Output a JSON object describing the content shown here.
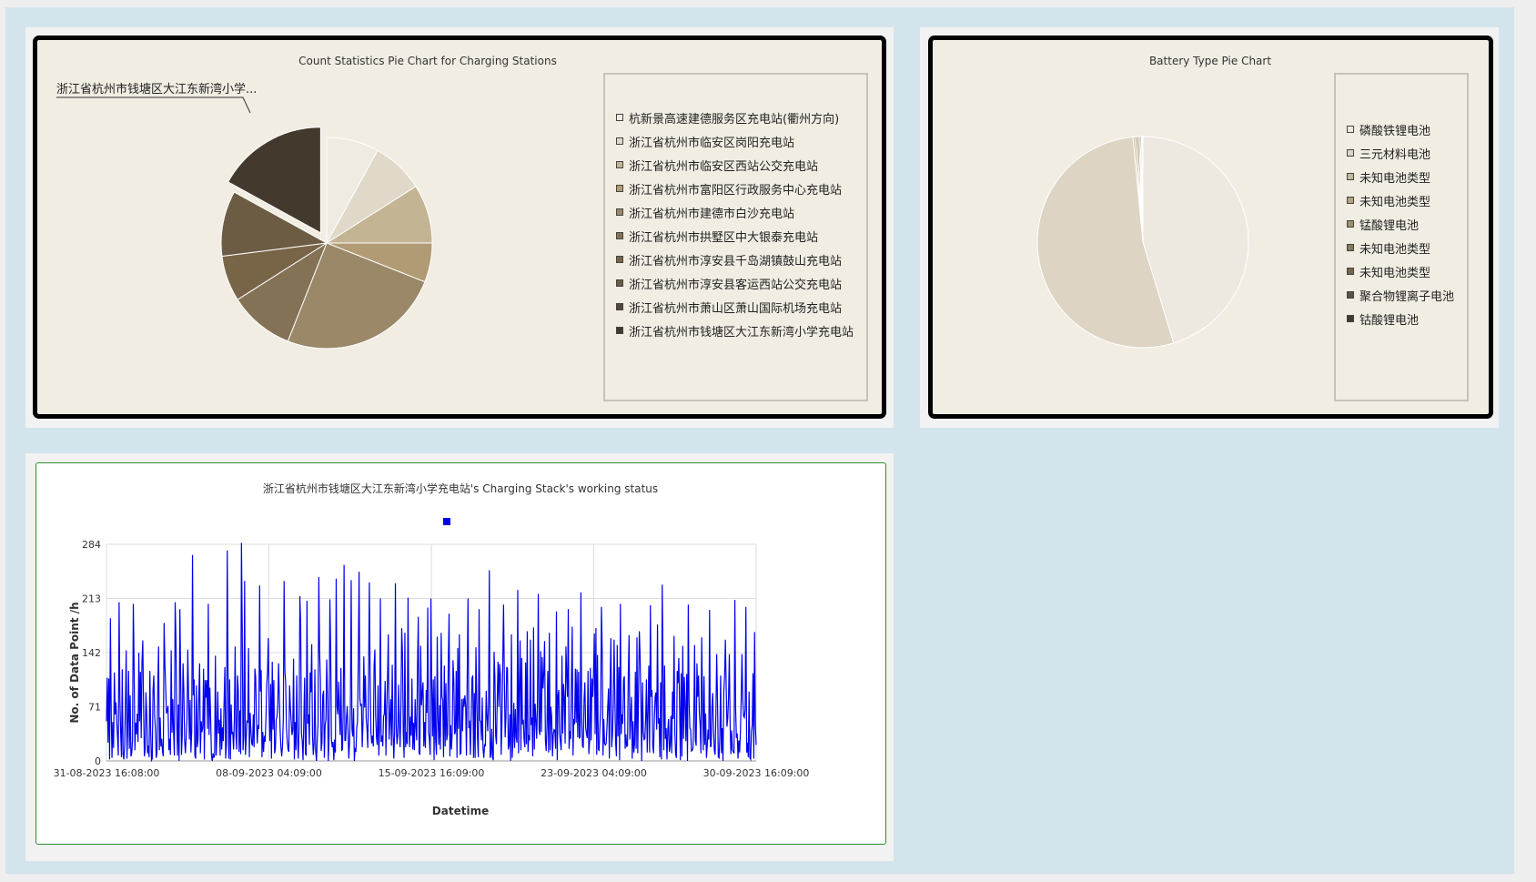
{
  "station_pie": {
    "chart_data": {
      "type": "pie",
      "title": "Count Statistics Pie Chart for Charging Stations",
      "legend_position": "right",
      "exploded_label": "浙江省杭州市钱塘区大江东新湾小学...",
      "slices": [
        {
          "label": "杭新景高速建德服务区充电站(衢州方向)",
          "value": 8,
          "color": "#efeae2"
        },
        {
          "label": "浙江省杭州市临安区岗阳充电站",
          "value": 8,
          "color": "#e0d8c8"
        },
        {
          "label": "浙江省杭州市临安区西站公交充电站",
          "value": 9,
          "color": "#c3b494"
        },
        {
          "label": "浙江省杭州市富阳区行政服务中心充电站",
          "value": 6,
          "color": "#b09b74"
        },
        {
          "label": "浙江省杭州市建德市白沙充电站",
          "value": 25,
          "color": "#9a8868"
        },
        {
          "label": "浙江省杭州市拱墅区中大银泰充电站",
          "value": 10,
          "color": "#847257"
        },
        {
          "label": "浙江省杭州市淳安县千岛湖镇鼓山充电站",
          "value": 7,
          "color": "#786548"
        },
        {
          "label": "浙江省杭州市淳安县客运西站公交充电站",
          "value": 10,
          "color": "#6c5c44"
        },
        {
          "label": "浙江省杭州市萧山区萧山国际机场充电站",
          "value": 0,
          "color": "#54483a"
        },
        {
          "label": "浙江省杭州市钱塘区大江东新湾小学充电站",
          "value": 17,
          "color": "#433a2d"
        }
      ]
    }
  },
  "battery_pie": {
    "chart_data": {
      "type": "pie",
      "title": "Battery Type Pie Chart",
      "legend_position": "right",
      "slices": [
        {
          "label": "磷酸铁锂电池",
          "value": 45.3,
          "color": "#ede8e0"
        },
        {
          "label": "三元材料电池",
          "value": 53.2,
          "color": "#ddd4c3"
        },
        {
          "label": "未知电池类型",
          "value": 0.3,
          "color": "#c6b89a"
        },
        {
          "label": "未知电池类型",
          "value": 0.3,
          "color": "#b6a27c"
        },
        {
          "label": "锰酸锂电池",
          "value": 0.3,
          "color": "#a08e6c"
        },
        {
          "label": "未知电池类型",
          "value": 0.2,
          "color": "#8a785a"
        },
        {
          "label": "未知电池类型",
          "value": 0.2,
          "color": "#786548"
        },
        {
          "label": "聚合物锂离子电池",
          "value": 0.1,
          "color": "#5e5040"
        },
        {
          "label": "钴酸锂电池",
          "value": 0.1,
          "color": "#433a2d"
        }
      ]
    }
  },
  "status_line": {
    "chart_data": {
      "type": "line",
      "title": "浙江省杭州市钱塘区大江东新湾小学充电站's Charging Stack's working status",
      "xlabel": "Datetime",
      "ylabel": "No. of Data Point /h",
      "x_ticks": [
        "31-08-2023 16:08:00",
        "08-09-2023 04:09:00",
        "15-09-2023 16:09:00",
        "23-09-2023 04:09:00",
        "30-09-2023 16:09:00"
      ],
      "y_ticks": [
        0,
        71,
        142,
        213,
        284
      ],
      "ylim": [
        0,
        284
      ],
      "grid": true,
      "legend_position": "top",
      "series": [
        {
          "color": "#0000ee",
          "x_start": "31-08-2023 16:08:00",
          "x_end": "30-09-2023 16:09:00",
          "step": "1h",
          "values": [
            52,
            109,
            24,
            108,
            2,
            187,
            64,
            4,
            51,
            17,
            116,
            61,
            77,
            52,
            32,
            7,
            208,
            81,
            37,
            5,
            120,
            9,
            2,
            19,
            75,
            145,
            3,
            44,
            118,
            16,
            86,
            6,
            10,
            27,
            206,
            128,
            14,
            50,
            35,
            62,
            25,
            142,
            52,
            117,
            30,
            131,
            158,
            71,
            6,
            15,
            90,
            60,
            10,
            20,
            5,
            118,
            39,
            1,
            3,
            94,
            112,
            60,
            41,
            4,
            11,
            97,
            150,
            14,
            57,
            19,
            29,
            12,
            6,
            181,
            128,
            97,
            62,
            66,
            72,
            14,
            29,
            8,
            145,
            37,
            81,
            38,
            7,
            208,
            161,
            53,
            7,
            74,
            0,
            199,
            113,
            8,
            33,
            128,
            93,
            26,
            10,
            32,
            54,
            146,
            85,
            28,
            80,
            11,
            39,
            270,
            86,
            107,
            7,
            3,
            99,
            18,
            27,
            85,
            128,
            10,
            52,
            38,
            44,
            121,
            2,
            106,
            83,
            106,
            42,
            206,
            34,
            96,
            55,
            7,
            0,
            10,
            4,
            8,
            138,
            7,
            38,
            91,
            36,
            54,
            7,
            69,
            15,
            44,
            26,
            78,
            123,
            3,
            22,
            276,
            116,
            3,
            107,
            2,
            74,
            36,
            37,
            15,
            54,
            150,
            33,
            15,
            112,
            93,
            12,
            66,
            9,
            286,
            173,
            14,
            32,
            236,
            8,
            28,
            53,
            50,
            148,
            5,
            63,
            39,
            23,
            20,
            61,
            18,
            121,
            110,
            55,
            23,
            47,
            42,
            230,
            91,
            119,
            5,
            38,
            12,
            33,
            25,
            55,
            100,
            116,
            161,
            70,
            26,
            101,
            3,
            130,
            41,
            106,
            10,
            16,
            54,
            58,
            73,
            128,
            83,
            40,
            18,
            6,
            20,
            55,
            236,
            119,
            102,
            44,
            26,
            15,
            12,
            99,
            70,
            52,
            34,
            41,
            134,
            2,
            51,
            14,
            112,
            31,
            3,
            45,
            216,
            179,
            36,
            26,
            1,
            52,
            109,
            9,
            8,
            210,
            49,
            61,
            21,
            116,
            90,
            153,
            33,
            8,
            23,
            120,
            13,
            0,
            28,
            48,
            241,
            144,
            106,
            13,
            24,
            86,
            92,
            4,
            47,
            55,
            133,
            82,
            0,
            33,
            212,
            147,
            28,
            18,
            25,
            1,
            28,
            11,
            239,
            72,
            61,
            104,
            63,
            34,
            122,
            14,
            15,
            74,
            257,
            27,
            27,
            56,
            72,
            38,
            3,
            26,
            73,
            237,
            41,
            32,
            69,
            0,
            17,
            12,
            43,
            52,
            131,
            248,
            82,
            72,
            75,
            18,
            51,
            137,
            70,
            112,
            56,
            42,
            17,
            106,
            234,
            109,
            38,
            23,
            33,
            19,
            125,
            146,
            59,
            31,
            21,
            99,
            7,
            41,
            213,
            25,
            33,
            19,
            58,
            62,
            105,
            7,
            68,
            108,
            166,
            28,
            54,
            81,
            20,
            126,
            39,
            3,
            38,
            233,
            47,
            22,
            34,
            100,
            48,
            18,
            73,
            174,
            141,
            36,
            4,
            168,
            18,
            38,
            22,
            214,
            64,
            18,
            58,
            33,
            108,
            15,
            50,
            14,
            81,
            44,
            27,
            127,
            189,
            11,
            8,
            151,
            73,
            88,
            103,
            19,
            51,
            17,
            93,
            63,
            201,
            38,
            29,
            8,
            213,
            103,
            32,
            107,
            1,
            111,
            26,
            8,
            163,
            54,
            21,
            73,
            15,
            168,
            84,
            80,
            5,
            125,
            19,
            102,
            27,
            35,
            128,
            193,
            6,
            47,
            15,
            38,
            132,
            105,
            35,
            38,
            118,
            4,
            148,
            42,
            166,
            9,
            10,
            81,
            39,
            82,
            71,
            86,
            72,
            7,
            115,
            213,
            43,
            53,
            8,
            57,
            108,
            112,
            4,
            89,
            4,
            149,
            86,
            31,
            5,
            199,
            53,
            52,
            27,
            83,
            16,
            4,
            22,
            19,
            92,
            58,
            39,
            78,
            250,
            4,
            9,
            42,
            4,
            1,
            143,
            111,
            33,
            22,
            80,
            130,
            71,
            127,
            113,
            8,
            52,
            127,
            205,
            110,
            31,
            57,
            123,
            121,
            15,
            21,
            61,
            0,
            166,
            4,
            28,
            76,
            17,
            68,
            31,
            24,
            224,
            10,
            95,
            158,
            14,
            135,
            48,
            54,
            28,
            18,
            129,
            22,
            170,
            12,
            34,
            27,
            159,
            47,
            57,
            6,
            175,
            15,
            75,
            53,
            29,
            82,
            219,
            41,
            34,
            144,
            38,
            136,
            95,
            115,
            157,
            28,
            13,
            45,
            118,
            11,
            168,
            14,
            71,
            57,
            6,
            35,
            41,
            40,
            16,
            196,
            1,
            86,
            93,
            36,
            25,
            14,
            138,
            36,
            101,
            83,
            23,
            150,
            113,
            84,
            199,
            16,
            39,
            29,
            103,
            176,
            7,
            55,
            48,
            121,
            50,
            120,
            31,
            117,
            30,
            31,
            221,
            56,
            19,
            18,
            80,
            103,
            43,
            36,
            30,
            118,
            9,
            26,
            122,
            27,
            108,
            84,
            117,
            167,
            35,
            174,
            8,
            139,
            15,
            14,
            43,
            69,
            202,
            144,
            7,
            55,
            23,
            21,
            23,
            44,
            72,
            95,
            3,
            102,
            161,
            18,
            34,
            73,
            159,
            84,
            23,
            6,
            152,
            32,
            123,
            1,
            206,
            35,
            61,
            49,
            106,
            111,
            16,
            35,
            19,
            20,
            113,
            165,
            28,
            56,
            84,
            3,
            52,
            11,
            23,
            117,
            16,
            162,
            10,
            93,
            170,
            136,
            78,
            0,
            103,
            39,
            28,
            29,
            54,
            107,
            11,
            65,
            125,
            11,
            204,
            84,
            93,
            20,
            10,
            55,
            84,
            90,
            41,
            179,
            49,
            56,
            5,
            103,
            2,
            231,
            122,
            14,
            125,
            29,
            43,
            2,
            39,
            55,
            12,
            20,
            59,
            10,
            91,
            55,
            164,
            36,
            9,
            4,
            118,
            102,
            135,
            71,
            1,
            115,
            6,
            151,
            29,
            110,
            73,
            26,
            114,
            0,
            205,
            79,
            43,
            41,
            13,
            14,
            17,
            56,
            152,
            27,
            20,
            128,
            84,
            112,
            63,
            48,
            10,
            162,
            80,
            14,
            111,
            21,
            62,
            4,
            19,
            41,
            28,
            198,
            19,
            19,
            72,
            89,
            40,
            14,
            8,
            62,
            140,
            81,
            5,
            4,
            33,
            112,
            10,
            43,
            0,
            90,
            111,
            159,
            99,
            45,
            56,
            84,
            140,
            46,
            9,
            40,
            14,
            12,
            10,
            211,
            69,
            30,
            36,
            3,
            27,
            11,
            36,
            80,
            140,
            81,
            59,
            57,
            67,
            202,
            11,
            24,
            5,
            91,
            4,
            2,
            38,
            47,
            115,
            3,
            169,
            46,
            21
          ]
        }
      ]
    }
  }
}
